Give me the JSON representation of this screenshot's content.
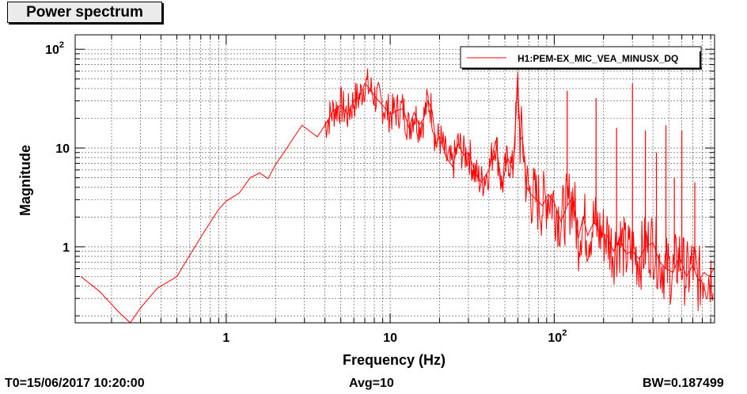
{
  "window": {
    "title": "Power spectrum"
  },
  "footer": {
    "t0": "T0=15/06/2017 10:20:00",
    "avg": "Avg=10",
    "bw": "BW=0.187499"
  },
  "colors": {
    "trace": "#ff0000",
    "grid": "#000000",
    "background": "#ffffff"
  },
  "chart_data": {
    "type": "line",
    "title": "Power spectrum",
    "xlabel": "Frequency (Hz)",
    "ylabel": "Magnitude",
    "xscale": "log",
    "yscale": "log",
    "xlim": [
      0.12,
      950
    ],
    "ylim": [
      0.17,
      140
    ],
    "grid": true,
    "legend_position": "top-right",
    "x_ticks": [
      {
        "value": 1,
        "label": "1"
      },
      {
        "value": 10,
        "label": "10"
      },
      {
        "value": 100,
        "label": "10",
        "exp": "2"
      }
    ],
    "y_ticks": [
      {
        "value": 1,
        "label": "1"
      },
      {
        "value": 10,
        "label": "10"
      },
      {
        "value": 100,
        "label": "10",
        "exp": "2"
      }
    ],
    "series": [
      {
        "name": "H1:PEM-EX_MIC_VEA_MINUSX_DQ",
        "color": "#ff0000",
        "x": [
          0.13,
          0.17,
          0.22,
          0.26,
          0.3,
          0.38,
          0.5,
          0.62,
          0.75,
          0.9,
          1.0,
          1.2,
          1.4,
          1.6,
          1.8,
          2.0,
          2.3,
          2.6,
          2.9,
          3.2,
          3.6,
          4.0,
          4.5,
          5.0,
          5.5,
          6.0,
          6.5,
          7.0,
          7.5,
          8.0,
          8.5,
          9.0,
          10,
          11,
          12,
          13,
          14,
          15,
          16,
          17,
          18,
          19,
          20,
          22,
          24,
          26,
          28,
          30,
          33,
          36,
          40,
          44,
          48,
          52,
          56,
          60,
          62,
          64,
          68,
          72,
          78,
          85,
          92,
          100,
          110,
          120,
          130,
          140,
          150,
          160,
          175,
          190,
          210,
          230,
          250,
          275,
          300,
          330,
          360,
          400,
          440,
          480,
          530,
          580,
          640,
          700,
          760,
          820,
          880,
          940
        ],
        "y": [
          0.5,
          0.35,
          0.22,
          0.17,
          0.24,
          0.38,
          0.5,
          0.9,
          1.5,
          2.4,
          2.9,
          3.5,
          5.0,
          5.6,
          4.9,
          6.8,
          9.5,
          13,
          17,
          15,
          13,
          17,
          24,
          27,
          22,
          30,
          33,
          45,
          40,
          34,
          30,
          27,
          22,
          24,
          25,
          16,
          23,
          17,
          20,
          30,
          24,
          11,
          13,
          8,
          6.5,
          11,
          8.5,
          9,
          5.5,
          4.5,
          6,
          12,
          4,
          8,
          6,
          45,
          12,
          13,
          4,
          3.4,
          3.0,
          2.6,
          3.4,
          2.8,
          1.8,
          2.6,
          3.2,
          1.2,
          2.0,
          1.3,
          1.8,
          1.4,
          1.3,
          0.9,
          1.2,
          0.85,
          0.9,
          0.75,
          1.0,
          1.1,
          0.7,
          0.6,
          0.55,
          0.8,
          0.5,
          0.65,
          0.45,
          0.55,
          0.5,
          0.6
        ]
      }
    ],
    "peaks": [
      {
        "x": 60,
        "y": 48
      },
      {
        "x": 120,
        "y": 38
      },
      {
        "x": 180,
        "y": 32
      },
      {
        "x": 240,
        "y": 16
      },
      {
        "x": 300,
        "y": 45
      },
      {
        "x": 360,
        "y": 15
      },
      {
        "x": 420,
        "y": 9
      },
      {
        "x": 480,
        "y": 17
      },
      {
        "x": 540,
        "y": 5
      },
      {
        "x": 600,
        "y": 15
      },
      {
        "x": 720,
        "y": 4.5
      }
    ]
  }
}
